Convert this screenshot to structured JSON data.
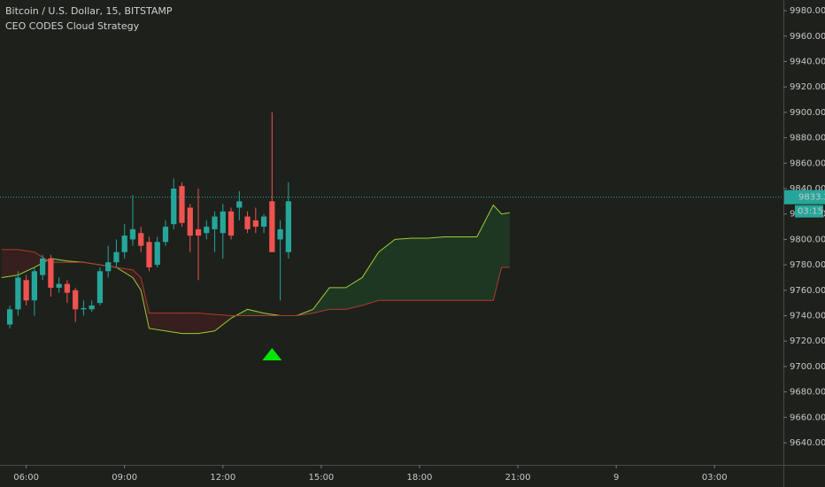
{
  "chart_data": {
    "type": "candlestick",
    "title": "Bitcoin / U.S. Dollar, 15, BITSTAMP",
    "subtitle": "CEO CODES Cloud Strategy",
    "up_color": "#26a69a",
    "down_color": "#ef5350",
    "x": [
      5.5,
      5.75,
      6,
      6.25,
      6.5,
      6.75,
      7,
      7.25,
      7.5,
      7.75,
      8,
      8.25,
      8.5,
      8.75,
      9,
      9.25,
      9.5,
      9.75,
      10,
      10.25,
      10.5,
      10.75,
      11,
      11.25,
      11.5,
      11.75,
      12,
      12.25,
      12.5,
      12.75,
      13,
      13.25,
      13.5,
      13.75,
      14
    ],
    "open": [
      9733,
      9745,
      9768,
      9752,
      9772,
      9785,
      9762,
      9765,
      9760,
      9745,
      9745,
      9750,
      9775,
      9782,
      9790,
      9800,
      9805,
      9798,
      9780,
      9798,
      9812,
      9842,
      9825,
      9808,
      9805,
      9808,
      9805,
      9822,
      9825,
      9818,
      9815,
      9810,
      9830,
      9800,
      9790
    ],
    "high": [
      9748,
      9775,
      9772,
      9778,
      9788,
      9788,
      9770,
      9768,
      9762,
      9752,
      9752,
      9778,
      9795,
      9800,
      9812,
      9835,
      9810,
      9802,
      9802,
      9815,
      9848,
      9845,
      9828,
      9840,
      9815,
      9822,
      9828,
      9825,
      9838,
      9822,
      9825,
      9820,
      9900,
      9815,
      9845
    ],
    "low": [
      9730,
      9740,
      9748,
      9740,
      9768,
      9755,
      9758,
      9750,
      9735,
      9740,
      9743,
      9748,
      9770,
      9778,
      9785,
      9795,
      9790,
      9775,
      9778,
      9795,
      9808,
      9810,
      9790,
      9768,
      9800,
      9790,
      9785,
      9800,
      9815,
      9805,
      9805,
      9805,
      9790,
      9752,
      9785
    ],
    "close": [
      9745,
      9770,
      9752,
      9775,
      9785,
      9762,
      9765,
      9758,
      9745,
      9746,
      9748,
      9775,
      9782,
      9790,
      9803,
      9808,
      9795,
      9778,
      9798,
      9810,
      9840,
      9813,
      9803,
      9803,
      9810,
      9818,
      9822,
      9803,
      9830,
      9808,
      9810,
      9818,
      9790,
      9808,
      9830
    ],
    "cloud": {
      "x": [
        5.25,
        5.75,
        6.25,
        6.75,
        7.25,
        7.75,
        8.25,
        8.75,
        9.25,
        9.5,
        9.75,
        10.25,
        10.75,
        11.25,
        11.75,
        12.25,
        12.75,
        13.25,
        13.75,
        14.25,
        14.75,
        15.25,
        15.75,
        16.25,
        16.75,
        17.25,
        17.75,
        18.25,
        18.75,
        19.25,
        19.75,
        20.25,
        20.5,
        20.75
      ],
      "series": [
        {
          "color": "#9acd32",
          "values": [
            9770,
            9772,
            9778,
            9785,
            9783,
            9782,
            9780,
            9778,
            9770,
            9760,
            9730,
            9728,
            9726,
            9726,
            9728,
            9738,
            9745,
            9742,
            9740,
            9740,
            9745,
            9762,
            9762,
            9770,
            9790,
            9800,
            9801,
            9801,
            9802,
            9802,
            9802,
            9827,
            9820,
            9821
          ]
        },
        {
          "color": "#b03a2e",
          "values": [
            9792,
            9792,
            9790,
            9782,
            9782,
            9782,
            9780,
            9778,
            9776,
            9770,
            9742,
            9742,
            9742,
            9742,
            9741,
            9740,
            9740,
            9740,
            9740,
            9740,
            9742,
            9745,
            9745,
            9748,
            9752,
            9752,
            9752,
            9752,
            9752,
            9752,
            9752,
            9752,
            9778,
            9778
          ]
        }
      ],
      "up_fill": "#1f4a2a",
      "down_fill": "#4a1f1f"
    },
    "signals": {
      "x": [
        13.5
      ],
      "values": [
        9709
      ],
      "color": "#00e600"
    },
    "last_price": {
      "value": 9833.27,
      "label": "9833.27",
      "countdown": "03:15",
      "color": "#26a69a"
    },
    "xlim": [
      5.2,
      29.1
    ],
    "xticks": [
      {
        "value": 6,
        "label": "06:00"
      },
      {
        "value": 9,
        "label": "09:00"
      },
      {
        "value": 12,
        "label": "12:00"
      },
      {
        "value": 15,
        "label": "15:00"
      },
      {
        "value": 18,
        "label": "18:00"
      },
      {
        "value": 21,
        "label": "21:00"
      },
      {
        "value": 24,
        "label": "9"
      },
      {
        "value": 27,
        "label": "03:00"
      }
    ],
    "ylim": [
      9622.6,
      9988.4
    ],
    "yticks": [
      {
        "value": 9640,
        "label": "9640.00"
      },
      {
        "value": 9660,
        "label": "9660.00"
      },
      {
        "value": 9680,
        "label": "9680.00"
      },
      {
        "value": 9700,
        "label": "9700.00"
      },
      {
        "value": 9720,
        "label": "9720.00"
      },
      {
        "value": 9740,
        "label": "9740.00"
      },
      {
        "value": 9760,
        "label": "9760.00"
      },
      {
        "value": 9780,
        "label": "9780.00"
      },
      {
        "value": 9800,
        "label": "9800.00"
      },
      {
        "value": 9820,
        "label": "9820.00"
      },
      {
        "value": 9840,
        "label": "9840.00"
      },
      {
        "value": 9860,
        "label": "9860.00"
      },
      {
        "value": 9880,
        "label": "9880.00"
      },
      {
        "value": 9900,
        "label": "9900.00"
      },
      {
        "value": 9920,
        "label": "9920.00"
      },
      {
        "value": 9940,
        "label": "9940.00"
      },
      {
        "value": 9960,
        "label": "9960.00"
      },
      {
        "value": 9980,
        "label": "9980.00"
      }
    ]
  }
}
